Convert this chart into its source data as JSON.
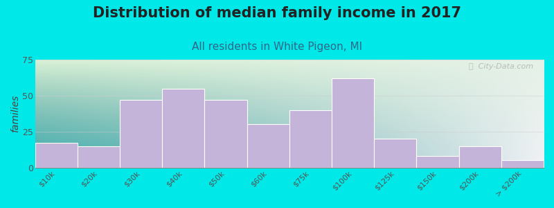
{
  "title": "Distribution of median family income in 2017",
  "subtitle": "All residents in White Pigeon, MI",
  "ylabel": "families",
  "categories": [
    "$10k",
    "$20k",
    "$30k",
    "$40k",
    "$50k",
    "$60k",
    "$75k",
    "$100k",
    "$125k",
    "$150k",
    "$200k",
    "> $200k"
  ],
  "values": [
    17,
    15,
    47,
    55,
    47,
    30,
    40,
    62,
    20,
    8,
    15,
    5
  ],
  "bar_color": "#c4b4d9",
  "bar_edgecolor": "#ffffff",
  "background_color": "#00e8e8",
  "plot_bg_left_top": "#daf0d8",
  "plot_bg_right_bottom": "#f0f0f0",
  "title_fontsize": 15,
  "subtitle_fontsize": 11,
  "title_color": "#222222",
  "subtitle_color": "#336688",
  "ylabel_color": "#444444",
  "tick_color": "#555555",
  "ylim": [
    0,
    75
  ],
  "yticks": [
    0,
    25,
    50,
    75
  ],
  "watermark": "ⓘ  City-Data.com"
}
